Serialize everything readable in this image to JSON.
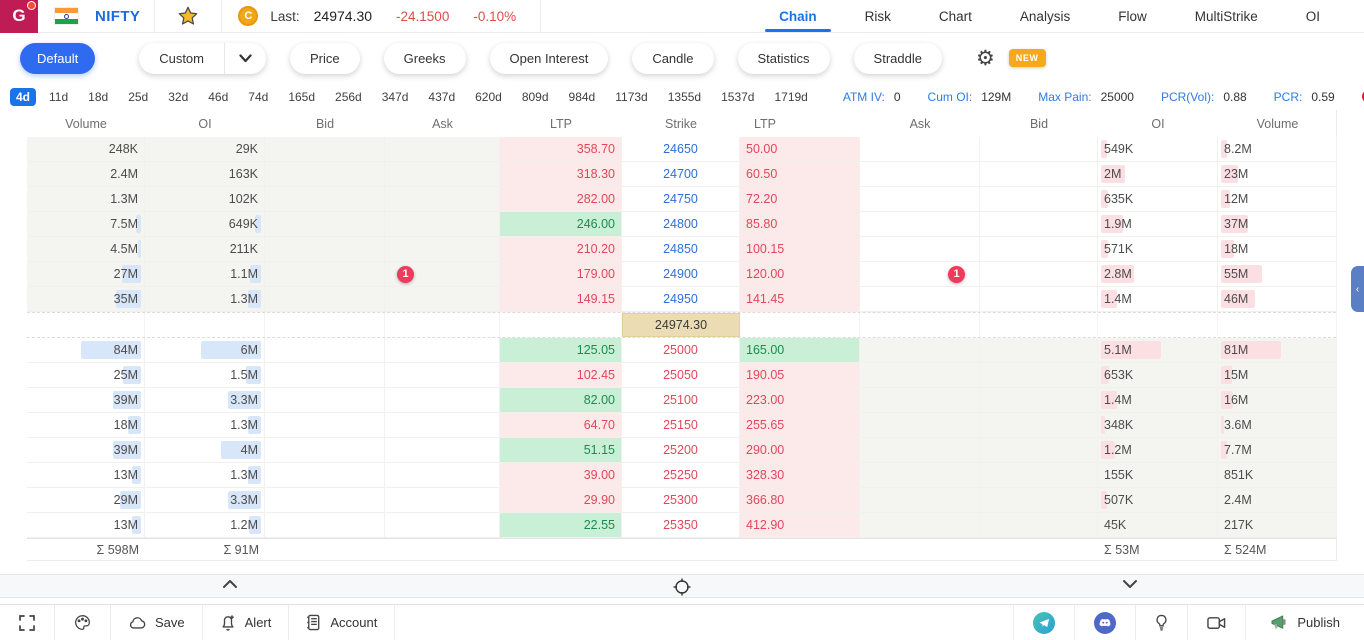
{
  "colors": {
    "accent": "#1a73e8",
    "negative": "#e14b4b",
    "ltp_red_text": "#e0485a",
    "ltp_red_bg": "#fce9ea",
    "ltp_green_text": "#1d8a4e",
    "ltp_green_bg": "#c9f0d6",
    "strike_blue": "#2f6fd6",
    "strike_red": "#e0485a",
    "spot_bg": "#ecdcb4",
    "badge_red": "#ee3b5b",
    "new_badge_bg": "#f6a91c",
    "logo_bg": "#bf1c55",
    "itm_shade": "#f4f4f0",
    "bar_blue": "#d7e6f8",
    "bar_pink": "#fcdfe2"
  },
  "topbar": {
    "logo_letter": "G",
    "symbol": "NIFTY",
    "last_label": "Last:",
    "last_price": "24974.30",
    "change": "-24.1500",
    "change_pct": "-0.10%",
    "coin_letter": "C",
    "tabs": [
      {
        "label": "Chain",
        "active": true
      },
      {
        "label": "Risk",
        "active": false
      },
      {
        "label": "Chart",
        "active": false
      },
      {
        "label": "Analysis",
        "active": false
      },
      {
        "label": "Flow",
        "active": false
      },
      {
        "label": "MultiStrike",
        "active": false
      },
      {
        "label": "OI",
        "active": false
      }
    ]
  },
  "toolbar": {
    "default_label": "Default",
    "custom_label": "Custom",
    "pills": [
      "Price",
      "Greeks",
      "Open Interest",
      "Candle",
      "Statistics",
      "Straddle"
    ],
    "new_badge": "NEW"
  },
  "expiry": {
    "days": [
      "4d",
      "11d",
      "18d",
      "25d",
      "32d",
      "46d",
      "74d",
      "165d",
      "256d",
      "347d",
      "437d",
      "620d",
      "809d",
      "984d",
      "1173d",
      "1355d",
      "1537d",
      "1719d"
    ],
    "active_day": "4d",
    "stats": [
      {
        "label": "ATM IV:",
        "value": "0"
      },
      {
        "label": "Cum OI:",
        "value": "129M"
      },
      {
        "label": "Max Pain:",
        "value": "25000"
      },
      {
        "label": "PCR(Vol):",
        "value": "0.88"
      },
      {
        "label": "PCR:",
        "value": "0.59"
      }
    ]
  },
  "chain": {
    "headers": [
      "Volume",
      "OI",
      "Bid",
      "Ask",
      "LTP",
      "Strike",
      "LTP",
      "Ask",
      "Bid",
      "OI",
      "Volume"
    ],
    "spot_price": "24974.30",
    "rows_above": [
      {
        "volume": "248K",
        "oi": "29K",
        "ltp": "358.70",
        "ltp_color": "red",
        "strike": "24650",
        "p_ltp": "50.00",
        "p_ltp_color": "red",
        "p_oi": "549K",
        "p_volume": "8.2M"
      },
      {
        "volume": "2.4M",
        "oi": "163K",
        "ltp": "318.30",
        "ltp_color": "red",
        "strike": "24700",
        "p_ltp": "60.50",
        "p_ltp_color": "red",
        "p_oi": "2M",
        "p_volume": "23M"
      },
      {
        "volume": "1.3M",
        "oi": "102K",
        "ltp": "282.00",
        "ltp_color": "red",
        "strike": "24750",
        "p_ltp": "72.20",
        "p_ltp_color": "red",
        "p_oi": "635K",
        "p_volume": "12M"
      },
      {
        "volume": "7.5M",
        "oi": "649K",
        "ltp": "246.00",
        "ltp_color": "green",
        "strike": "24800",
        "p_ltp": "85.80",
        "p_ltp_color": "red",
        "p_oi": "1.9M",
        "p_volume": "37M"
      },
      {
        "volume": "4.5M",
        "oi": "211K",
        "ltp": "210.20",
        "ltp_color": "red",
        "strike": "24850",
        "p_ltp": "100.15",
        "p_ltp_color": "red",
        "p_oi": "571K",
        "p_volume": "18M"
      },
      {
        "volume": "27M",
        "oi": "1.1M",
        "ltp": "179.00",
        "ltp_color": "red",
        "strike": "24900",
        "p_ltp": "120.00",
        "p_ltp_color": "red",
        "p_oi": "2.8M",
        "p_volume": "55M",
        "ask_badge": "1",
        "p_ask_badge": "1"
      },
      {
        "volume": "35M",
        "oi": "1.3M",
        "ltp": "149.15",
        "ltp_color": "red",
        "strike": "24950",
        "p_ltp": "141.45",
        "p_ltp_color": "red",
        "p_oi": "1.4M",
        "p_volume": "46M"
      }
    ],
    "rows_below": [
      {
        "volume": "84M",
        "oi": "6M",
        "ltp": "125.05",
        "ltp_color": "green",
        "strike": "25000",
        "p_ltp": "165.00",
        "p_ltp_color": "green",
        "p_oi": "5.1M",
        "p_volume": "81M"
      },
      {
        "volume": "25M",
        "oi": "1.5M",
        "ltp": "102.45",
        "ltp_color": "red",
        "strike": "25050",
        "p_ltp": "190.05",
        "p_ltp_color": "red",
        "p_oi": "653K",
        "p_volume": "15M"
      },
      {
        "volume": "39M",
        "oi": "3.3M",
        "ltp": "82.00",
        "ltp_color": "green",
        "strike": "25100",
        "p_ltp": "223.00",
        "p_ltp_color": "red",
        "p_oi": "1.4M",
        "p_volume": "16M"
      },
      {
        "volume": "18M",
        "oi": "1.3M",
        "ltp": "64.70",
        "ltp_color": "red",
        "strike": "25150",
        "p_ltp": "255.65",
        "p_ltp_color": "red",
        "p_oi": "348K",
        "p_volume": "3.6M"
      },
      {
        "volume": "39M",
        "oi": "4M",
        "ltp": "51.15",
        "ltp_color": "green",
        "strike": "25200",
        "p_ltp": "290.00",
        "p_ltp_color": "red",
        "p_oi": "1.2M",
        "p_volume": "7.7M"
      },
      {
        "volume": "13M",
        "oi": "1.3M",
        "ltp": "39.00",
        "ltp_color": "red",
        "strike": "25250",
        "p_ltp": "328.30",
        "p_ltp_color": "red",
        "p_oi": "155K",
        "p_volume": "851K"
      },
      {
        "volume": "29M",
        "oi": "3.3M",
        "ltp": "29.90",
        "ltp_color": "red",
        "strike": "25300",
        "p_ltp": "366.80",
        "p_ltp_color": "red",
        "p_oi": "507K",
        "p_volume": "2.4M"
      },
      {
        "volume": "13M",
        "oi": "1.2M",
        "ltp": "22.55",
        "ltp_color": "green",
        "strike": "25350",
        "p_ltp": "412.90",
        "p_ltp_color": "red",
        "p_oi": "45K",
        "p_volume": "217K"
      }
    ],
    "totals": {
      "volume": "Σ 598M",
      "oi": "Σ 91M",
      "p_oi": "Σ 53M",
      "p_volume": "Σ 524M"
    }
  },
  "bottombar": {
    "save": "Save",
    "alert": "Alert",
    "account": "Account",
    "publish": "Publish"
  }
}
